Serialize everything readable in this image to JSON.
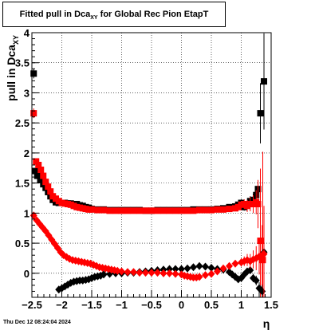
{
  "title": {
    "prefix": "Fitted pull in Dca",
    "subscript": "XY",
    "suffix": " for Global Rec Pion EtapT"
  },
  "footer": {
    "date": "Thu Dec 12 08:24:04 2024"
  },
  "chart_data": {
    "type": "scatter",
    "title": "Fitted pull in Dca_XY for Global Rec Pion EtapT",
    "xlabel": "η",
    "ylabel": "pull in Dca_XY",
    "xlim": [
      -2.5,
      1.5
    ],
    "ylim": [
      -0.4,
      4.0
    ],
    "xticks": [
      "−2.5",
      "−2",
      "−1.5",
      "−1",
      "−0.5",
      "0",
      "0.5",
      "1",
      "1.5"
    ],
    "xtick_values": [
      -2.5,
      -2.0,
      -1.5,
      -1.0,
      -0.5,
      0.0,
      0.5,
      1.0,
      1.5
    ],
    "yticks": [
      "0",
      "0.5",
      "1",
      "1.5",
      "2",
      "2.5",
      "3",
      "3.5",
      "4"
    ],
    "ytick_values": [
      0,
      0.5,
      1.0,
      1.5,
      2.0,
      2.5,
      3.0,
      3.5,
      4.0
    ],
    "grid": true,
    "colors": {
      "black": "#000000",
      "red": "#ff0000"
    },
    "series": [
      {
        "marker": "square",
        "color": "#000000",
        "x": [
          -2.47,
          -2.45,
          -2.41,
          -2.36,
          -2.31,
          -2.27,
          -2.23,
          -2.19,
          -2.15,
          -2.1,
          -2.05,
          -2.0,
          -1.95,
          -1.9,
          -1.85,
          -1.8,
          -1.75,
          -1.7,
          -1.65,
          -1.6,
          -1.55,
          -1.5,
          -1.4,
          -1.3,
          -1.2,
          -1.1,
          -1.0,
          -0.9,
          -0.8,
          -0.7,
          -0.6,
          -0.5,
          -0.4,
          -0.3,
          -0.2,
          -0.1,
          0.0,
          0.1,
          0.2,
          0.3,
          0.4,
          0.5,
          0.6,
          0.7,
          0.8,
          0.9,
          0.95,
          1.0,
          1.05,
          1.1,
          1.15,
          1.2,
          1.25,
          1.28,
          1.32,
          1.38
        ],
        "y": [
          3.32,
          1.7,
          1.62,
          1.55,
          1.48,
          1.42,
          1.35,
          1.28,
          1.22,
          1.18,
          1.17,
          1.17,
          1.17,
          1.16,
          1.16,
          1.15,
          1.15,
          1.13,
          1.12,
          1.1,
          1.09,
          1.07,
          1.06,
          1.06,
          1.05,
          1.05,
          1.05,
          1.05,
          1.05,
          1.05,
          1.04,
          1.04,
          1.05,
          1.05,
          1.05,
          1.05,
          1.05,
          1.05,
          1.06,
          1.06,
          1.06,
          1.06,
          1.07,
          1.08,
          1.1,
          1.11,
          1.14,
          1.17,
          1.1,
          1.15,
          1.2,
          1.22,
          1.3,
          1.4,
          2.66,
          3.19
        ],
        "yerr": [
          0.08,
          0.05,
          0.04,
          0.03,
          0.03,
          0.03,
          0.02,
          0.02,
          0.02,
          0.02,
          0.02,
          0.01,
          0.01,
          0.01,
          0.01,
          0.01,
          0.01,
          0.01,
          0.01,
          0.01,
          0.01,
          0.01,
          0.01,
          0.01,
          0.01,
          0.01,
          0.01,
          0.01,
          0.01,
          0.01,
          0.01,
          0.01,
          0.01,
          0.01,
          0.01,
          0.01,
          0.01,
          0.01,
          0.01,
          0.01,
          0.01,
          0.01,
          0.02,
          0.02,
          0.03,
          0.04,
          0.05,
          0.06,
          0.06,
          0.07,
          0.08,
          0.1,
          0.12,
          0.15,
          0.5,
          0.8
        ]
      },
      {
        "marker": "square",
        "color": "#ff0000",
        "x": [
          -2.47,
          -2.43,
          -2.39,
          -2.35,
          -2.31,
          -2.27,
          -2.23,
          -2.19,
          -2.15,
          -2.1,
          -2.05,
          -2.0,
          -1.95,
          -1.9,
          -1.85,
          -1.8,
          -1.75,
          -1.7,
          -1.65,
          -1.6,
          -1.55,
          -1.5,
          -1.4,
          -1.3,
          -1.2,
          -1.1,
          -1.0,
          -0.9,
          -0.8,
          -0.7,
          -0.6,
          -0.5,
          -0.4,
          -0.3,
          -0.2,
          -0.1,
          0.0,
          0.1,
          0.2,
          0.3,
          0.4,
          0.5,
          0.6,
          0.7,
          0.8,
          0.9,
          0.95,
          1.0,
          1.05,
          1.1,
          1.15,
          1.2,
          1.25,
          1.28,
          1.32,
          1.36
        ],
        "y": [
          2.66,
          1.86,
          1.8,
          1.72,
          1.62,
          1.52,
          1.44,
          1.36,
          1.28,
          1.24,
          1.2,
          1.17,
          1.16,
          1.15,
          1.14,
          1.12,
          1.1,
          1.09,
          1.08,
          1.07,
          1.06,
          1.06,
          1.05,
          1.05,
          1.04,
          1.04,
          1.04,
          1.04,
          1.04,
          1.04,
          1.04,
          1.04,
          1.04,
          1.04,
          1.04,
          1.04,
          1.04,
          1.04,
          1.04,
          1.05,
          1.05,
          1.05,
          1.06,
          1.06,
          1.07,
          1.08,
          1.1,
          1.14,
          1.15,
          1.12,
          1.15,
          1.15,
          1.18,
          1.15,
          0.54,
          0.22
        ],
        "yerr": [
          0.08,
          0.05,
          0.04,
          0.03,
          0.03,
          0.03,
          0.02,
          0.02,
          0.02,
          0.02,
          0.02,
          0.01,
          0.01,
          0.01,
          0.01,
          0.01,
          0.01,
          0.01,
          0.01,
          0.01,
          0.01,
          0.01,
          0.01,
          0.01,
          0.01,
          0.01,
          0.01,
          0.01,
          0.01,
          0.01,
          0.01,
          0.01,
          0.01,
          0.01,
          0.01,
          0.01,
          0.01,
          0.01,
          0.01,
          0.01,
          0.01,
          0.01,
          0.02,
          0.02,
          0.03,
          0.04,
          0.05,
          0.06,
          0.08,
          0.1,
          0.12,
          0.15,
          0.2,
          0.4,
          1.2,
          1.8
        ]
      },
      {
        "marker": "diamond",
        "color": "#000000",
        "x": [
          -2.05,
          -2.0,
          -1.95,
          -1.9,
          -1.85,
          -1.8,
          -1.75,
          -1.7,
          -1.65,
          -1.6,
          -1.55,
          -1.5,
          -1.45,
          -1.4,
          -1.35,
          -1.3,
          -1.2,
          -1.1,
          -1.0,
          -0.9,
          -0.8,
          -0.7,
          -0.6,
          -0.5,
          -0.4,
          -0.3,
          -0.2,
          -0.1,
          0.0,
          0.1,
          0.2,
          0.3,
          0.4,
          0.5,
          0.6,
          0.7,
          0.8,
          0.85,
          0.9,
          0.95,
          1.0,
          1.05,
          1.1,
          1.15,
          1.2,
          1.25,
          1.3,
          1.35,
          1.38
        ],
        "y": [
          -0.27,
          -0.25,
          -0.22,
          -0.19,
          -0.16,
          -0.14,
          -0.13,
          -0.12,
          -0.12,
          -0.11,
          -0.1,
          -0.08,
          -0.06,
          -0.05,
          -0.04,
          -0.02,
          -0.01,
          0.0,
          0.0,
          0.01,
          0.01,
          0.02,
          0.03,
          0.04,
          0.05,
          0.06,
          0.07,
          0.07,
          0.07,
          0.08,
          0.1,
          0.12,
          0.11,
          0.09,
          0.07,
          0.06,
          0.02,
          -0.02,
          -0.06,
          -0.1,
          -0.08,
          -0.02,
          0.03,
          0.05,
          -0.08,
          -0.12,
          -0.25,
          -0.3,
          0.35
        ],
        "yerr": [
          0.02,
          0.02,
          0.02,
          0.02,
          0.02,
          0.02,
          0.02,
          0.02,
          0.02,
          0.02,
          0.02,
          0.02,
          0.02,
          0.02,
          0.02,
          0.02,
          0.02,
          0.02,
          0.02,
          0.02,
          0.02,
          0.02,
          0.02,
          0.02,
          0.02,
          0.02,
          0.02,
          0.02,
          0.02,
          0.02,
          0.02,
          0.02,
          0.02,
          0.02,
          0.02,
          0.03,
          0.03,
          0.03,
          0.04,
          0.04,
          0.05,
          0.05,
          0.06,
          0.06,
          0.07,
          0.08,
          0.1,
          0.12,
          0.15
        ]
      },
      {
        "marker": "diamond",
        "color": "#ff0000",
        "x": [
          -2.47,
          -2.42,
          -2.37,
          -2.32,
          -2.27,
          -2.22,
          -2.17,
          -2.12,
          -2.07,
          -2.02,
          -1.97,
          -1.92,
          -1.87,
          -1.82,
          -1.77,
          -1.72,
          -1.67,
          -1.62,
          -1.57,
          -1.52,
          -1.47,
          -1.42,
          -1.37,
          -1.32,
          -1.27,
          -1.22,
          -1.17,
          -1.12,
          -1.07,
          -1.0,
          -0.9,
          -0.8,
          -0.7,
          -0.6,
          -0.5,
          -0.4,
          -0.3,
          -0.2,
          -0.1,
          0.0,
          0.05,
          0.1,
          0.15,
          0.2,
          0.25,
          0.3,
          0.4,
          0.5,
          0.6,
          0.7,
          0.8,
          0.9,
          1.0,
          1.05,
          1.1,
          1.15,
          1.2,
          1.25,
          1.3,
          1.35,
          1.38
        ],
        "y": [
          0.96,
          0.88,
          0.82,
          0.76,
          0.7,
          0.63,
          0.56,
          0.49,
          0.42,
          0.35,
          0.3,
          0.27,
          0.24,
          0.22,
          0.21,
          0.2,
          0.19,
          0.18,
          0.17,
          0.16,
          0.14,
          0.12,
          0.1,
          0.09,
          0.08,
          0.07,
          0.06,
          0.05,
          0.04,
          0.03,
          0.02,
          0.02,
          0.01,
          0.01,
          0.01,
          0.01,
          0.0,
          0.0,
          -0.01,
          -0.02,
          -0.04,
          -0.05,
          -0.06,
          -0.07,
          -0.07,
          -0.06,
          -0.03,
          -0.01,
          0.03,
          0.08,
          0.12,
          0.16,
          0.18,
          0.2,
          0.22,
          0.2,
          0.23,
          0.25,
          0.28,
          0.3,
          0.32
        ],
        "yerr": [
          0.06,
          0.05,
          0.04,
          0.04,
          0.03,
          0.03,
          0.03,
          0.02,
          0.02,
          0.02,
          0.02,
          0.02,
          0.02,
          0.02,
          0.02,
          0.02,
          0.02,
          0.02,
          0.02,
          0.02,
          0.02,
          0.02,
          0.02,
          0.02,
          0.02,
          0.02,
          0.02,
          0.02,
          0.02,
          0.02,
          0.02,
          0.02,
          0.02,
          0.02,
          0.02,
          0.02,
          0.02,
          0.02,
          0.02,
          0.02,
          0.02,
          0.02,
          0.02,
          0.02,
          0.02,
          0.02,
          0.03,
          0.03,
          0.04,
          0.04,
          0.05,
          0.06,
          0.07,
          0.08,
          0.1,
          0.12,
          0.15,
          0.2,
          0.3,
          0.5,
          0.8
        ]
      }
    ]
  }
}
